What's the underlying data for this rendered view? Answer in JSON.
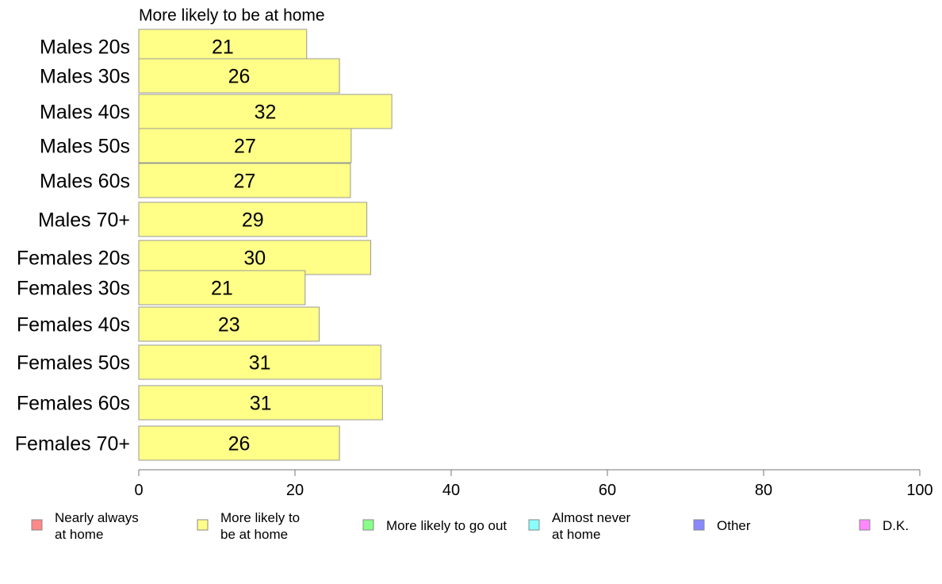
{
  "chart_data": {
    "type": "bar",
    "orientation": "horizontal",
    "title": "More likely to be at home",
    "categories": [
      "Males 20s",
      "Males 30s",
      "Males 40s",
      "Males 50s",
      "Males 60s",
      "Males 70+",
      "Females 20s",
      "Females 30s",
      "Females 40s",
      "Females 50s",
      "Females 60s",
      "Females 70+"
    ],
    "series": [
      {
        "name": "More likely to be at home",
        "values": [
          21.5,
          25.7,
          32.4,
          27.2,
          27.1,
          29.2,
          29.7,
          21.3,
          23.1,
          31.0,
          31.2,
          25.7
        ],
        "labels": [
          "21",
          "26",
          "32",
          "27",
          "27",
          "29",
          "30",
          "21",
          "23",
          "31",
          "31",
          "26"
        ]
      }
    ],
    "xlim": [
      0,
      100
    ],
    "xticks": [
      "0",
      "20",
      "40",
      "60",
      "80",
      "100"
    ],
    "xlabel": "",
    "ylabel": "",
    "grid": false,
    "bar_color": "#ffff88",
    "bar_edge_color": "#999999",
    "legend": {
      "placement": "bottom",
      "items": [
        {
          "lines": [
            "Nearly always",
            "at home"
          ],
          "color": "#ff8888"
        },
        {
          "lines": [
            "More likely to",
            "be at home"
          ],
          "color": "#ffff88"
        },
        {
          "lines": [
            "More likely to go out"
          ],
          "color": "#88ff88"
        },
        {
          "lines": [
            "Almost never",
            "at home"
          ],
          "color": "#88ffff"
        },
        {
          "lines": [
            "Other"
          ],
          "color": "#8888ff"
        },
        {
          "lines": [
            "D.K."
          ],
          "color": "#ff88ff"
        }
      ]
    }
  }
}
